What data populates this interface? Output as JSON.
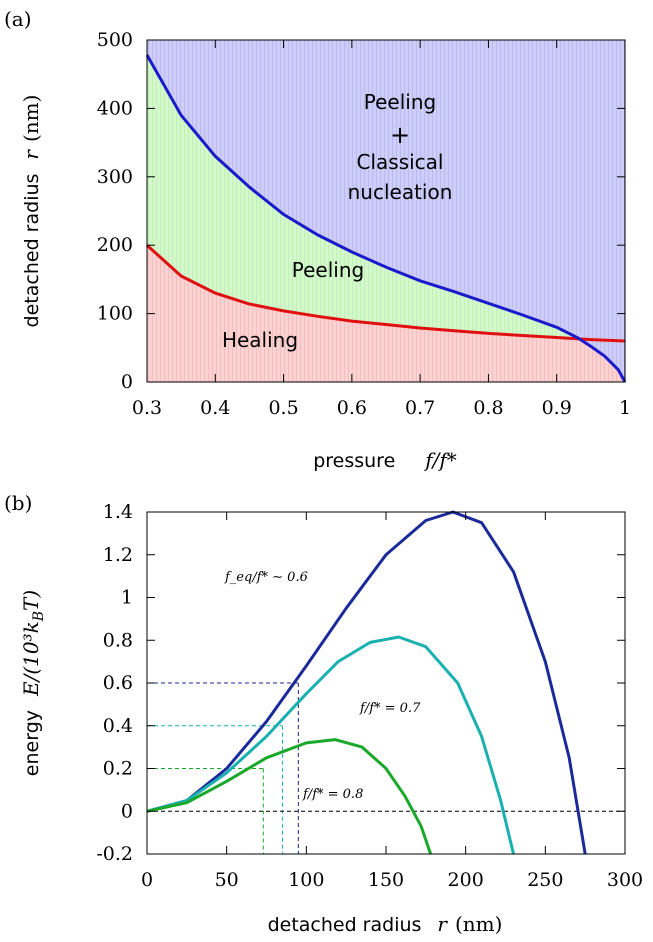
{
  "panel_a": {
    "label": "(a)",
    "ylabel_text": "detached radius",
    "ylabel_math": "r",
    "ylabel_unit": "(nm)",
    "xlabel_text": "pressure",
    "xlabel_math": "f/f*",
    "region_healing": "Healing",
    "region_peeling": "Peeling",
    "region_top_line1": "Peeling",
    "region_top_plus": "+",
    "region_top_line2": "Classical",
    "region_top_line3": "nucleation"
  },
  "panel_b": {
    "label": "(b)",
    "ylabel_text": "energy",
    "ylabel_math": "E/(10³k",
    "ylabel_sub": "B",
    "ylabel_end": "T)",
    "xlabel_text": "detached radius",
    "xlabel_math": "r",
    "xlabel_unit": "(nm)",
    "curve1_label": "f_eq/f* ∼ 0.6",
    "curve2_label": "f/f* = 0.7",
    "curve3_label": "f/f* = 0.8"
  },
  "colors": {
    "blue": "#1a1acc",
    "red": "#e01010",
    "healing_fill": "#f9c6c6",
    "peeling_fill": "#c8f5c0",
    "top_fill": "#c0c0f5",
    "navy": "#1a2a9a",
    "teal": "#1ab0b0",
    "green": "#1aa82a"
  },
  "chart_data": [
    {
      "type": "area",
      "xlim": [
        0.3,
        1.0
      ],
      "ylim": [
        0,
        500
      ],
      "xticks": [
        "0.3",
        "0.4",
        "0.5",
        "0.6",
        "0.7",
        "0.8",
        "0.9",
        "1"
      ],
      "yticks": [
        "0",
        "100",
        "200",
        "300",
        "400",
        "500"
      ],
      "xlabel": "pressure f/f*",
      "ylabel": "detached radius r (nm)",
      "series": [
        {
          "x": [
            0.3,
            0.35,
            0.4,
            0.45,
            0.5,
            0.55,
            0.6,
            0.65,
            0.7,
            0.75,
            0.8,
            0.85,
            0.9,
            0.93,
            0.95,
            0.97,
            0.99,
            1.0
          ],
          "values": [
            478,
            390,
            330,
            285,
            245,
            215,
            190,
            168,
            148,
            132,
            115,
            98,
            80,
            65,
            52,
            38,
            18,
            0
          ]
        },
        {
          "x": [
            0.3,
            0.35,
            0.4,
            0.45,
            0.5,
            0.55,
            0.6,
            0.65,
            0.7,
            0.75,
            0.8,
            0.85,
            0.9,
            0.95,
            1.0
          ],
          "values": [
            200,
            155,
            130,
            114,
            104,
            96,
            89,
            84,
            79,
            75,
            71,
            68,
            65,
            62,
            60
          ]
        }
      ]
    },
    {
      "type": "line",
      "xlim": [
        0,
        300
      ],
      "ylim": [
        -0.2,
        1.4
      ],
      "xticks": [
        "0",
        "50",
        "100",
        "150",
        "200",
        "250",
        "300"
      ],
      "yticks": [
        "-0.2",
        "0",
        "0.2",
        "0.4",
        "0.6",
        "0.8",
        "1",
        "1.2",
        "1.4"
      ],
      "xlabel": "detached radius r (nm)",
      "ylabel": "energy E/(10³k_B T)",
      "series": [
        {
          "name": "f_eq/f* ∼ 0.6",
          "x": [
            0,
            25,
            50,
            75,
            100,
            125,
            150,
            175,
            192,
            210,
            230,
            250,
            265,
            275
          ],
          "values": [
            0,
            0.05,
            0.2,
            0.42,
            0.68,
            0.95,
            1.2,
            1.36,
            1.4,
            1.35,
            1.12,
            0.7,
            0.25,
            -0.2
          ]
        },
        {
          "name": "f/f* = 0.7",
          "x": [
            0,
            25,
            50,
            75,
            100,
            120,
            140,
            158,
            175,
            195,
            210,
            222,
            230
          ],
          "values": [
            0,
            0.05,
            0.18,
            0.35,
            0.55,
            0.7,
            0.79,
            0.815,
            0.77,
            0.6,
            0.35,
            0.05,
            -0.2
          ]
        },
        {
          "name": "f/f* = 0.8",
          "x": [
            0,
            25,
            50,
            75,
            100,
            118,
            135,
            150,
            162,
            172,
            178
          ],
          "values": [
            0,
            0.04,
            0.14,
            0.25,
            0.32,
            0.335,
            0.3,
            0.2,
            0.07,
            -0.07,
            -0.2
          ]
        }
      ],
      "reference_lines": [
        {
          "y": 0.6,
          "x_end": 95,
          "color": "navy"
        },
        {
          "y": 0.4,
          "x_end": 85,
          "color": "teal"
        },
        {
          "y": 0.2,
          "x_end": 73,
          "color": "green"
        },
        {
          "y": 0,
          "x_end": 300,
          "color": "black"
        }
      ]
    }
  ]
}
